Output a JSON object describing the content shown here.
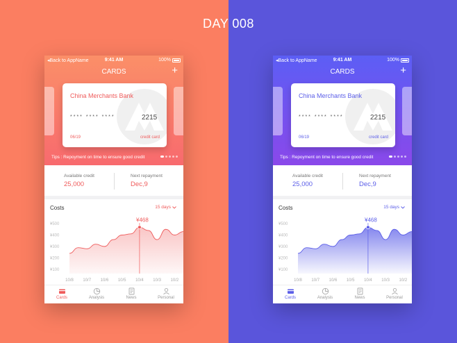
{
  "header": {
    "title": "DAY 008"
  },
  "phones": [
    {
      "theme": "orange",
      "accent": "#ef5b5b",
      "grad_top": "#fb8f68",
      "grad_bottom": "#f86a6e",
      "status": {
        "back": "Back to AppName",
        "time": "9:41 AM",
        "battery": "100%"
      },
      "nav": {
        "title": "CARDS",
        "add": "+"
      },
      "card": {
        "bank": "China Merchants Bank",
        "masked": "**** **** ****",
        "last4": "2215",
        "expiry": "06/19",
        "type": "credit card"
      },
      "tips": "Tips : Repoyment on time to ensure good credit",
      "available": {
        "label": "Available credit",
        "value": "25,000"
      },
      "next": {
        "label": "Next repayment",
        "value": "Dec,9"
      },
      "costs_label": "Costs",
      "range": "15 days",
      "tabs": [
        {
          "label": "Cards",
          "icon": "card-icon",
          "active": true
        },
        {
          "label": "Analysis",
          "icon": "pie-chart-icon",
          "active": false
        },
        {
          "label": "News",
          "icon": "news-icon",
          "active": false
        },
        {
          "label": "Personal",
          "icon": "person-icon",
          "active": false
        }
      ]
    },
    {
      "theme": "purple",
      "accent": "#5b5ee8",
      "grad_top": "#5c5ef5",
      "grad_bottom": "#8a48ea",
      "status": {
        "back": "Back to AppName",
        "time": "9:41 AM",
        "battery": "100%"
      },
      "nav": {
        "title": "CARDS",
        "add": "+"
      },
      "card": {
        "bank": "China Merchants Bank",
        "masked": "**** **** ****",
        "last4": "2215",
        "expiry": "06/19",
        "type": "credit card"
      },
      "tips": "Tips : Repoyment on time to ensure good credit",
      "available": {
        "label": "Available credit",
        "value": "25,000"
      },
      "next": {
        "label": "Next repayment",
        "value": "Dec,9"
      },
      "costs_label": "Costs",
      "range": "15 days",
      "tabs": [
        {
          "label": "Cards",
          "icon": "card-icon",
          "active": true
        },
        {
          "label": "Analysis",
          "icon": "pie-chart-icon",
          "active": false
        },
        {
          "label": "News",
          "icon": "news-icon",
          "active": false
        },
        {
          "label": "Personal",
          "icon": "person-icon",
          "active": false
        }
      ]
    }
  ],
  "chart_data": {
    "type": "area",
    "title": "",
    "xlabel": "",
    "ylabel": "",
    "ylim": [
      100,
      500
    ],
    "y_ticks": [
      "¥100",
      "¥200",
      "¥300",
      "¥400",
      "¥500"
    ],
    "categories": [
      "10/8",
      "10/7",
      "10/6",
      "10/5",
      "10/4",
      "10/3",
      "10/2"
    ],
    "x": [
      0,
      0.5,
      1,
      1.5,
      2,
      2.5,
      3,
      3.5,
      4,
      4.5,
      5,
      5.5,
      6,
      6.5
    ],
    "values": [
      240,
      290,
      280,
      320,
      300,
      360,
      400,
      410,
      468,
      440,
      360,
      450,
      400,
      430
    ],
    "highlight": {
      "x": 4,
      "value": 468,
      "label": "¥468"
    },
    "grid": false
  }
}
